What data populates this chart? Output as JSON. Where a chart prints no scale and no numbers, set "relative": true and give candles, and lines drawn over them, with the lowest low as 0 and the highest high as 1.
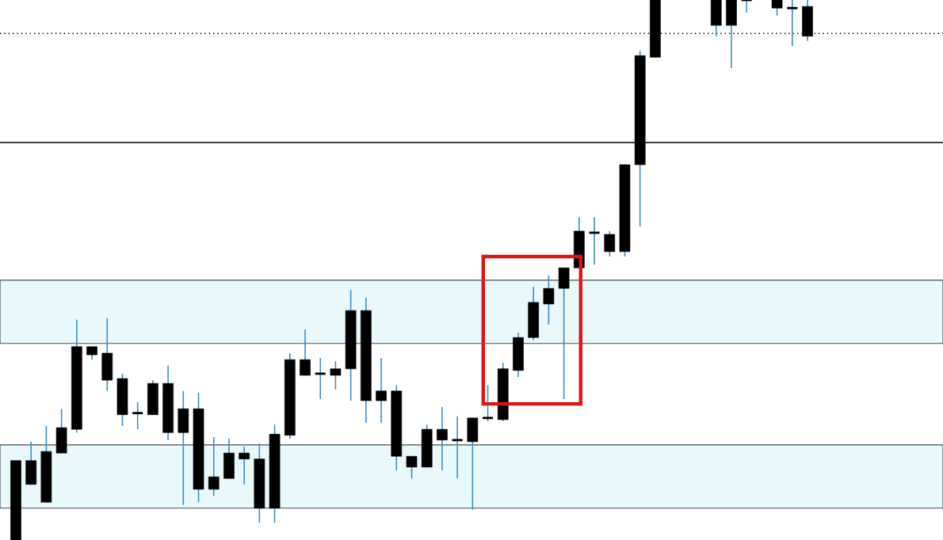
{
  "chart_data": {
    "type": "candlestick",
    "relative": true,
    "categories": [
      null,
      null,
      null,
      null,
      null,
      null,
      null,
      null,
      null,
      null,
      null,
      null,
      null,
      null,
      null,
      null,
      null,
      null,
      null,
      null,
      null,
      null,
      null,
      null,
      null,
      null,
      null,
      null,
      null,
      null,
      null,
      null,
      null,
      null,
      null,
      null,
      null,
      null,
      null,
      null,
      null,
      null,
      null,
      null,
      null,
      null,
      null,
      null,
      null,
      null,
      null,
      null,
      null
    ],
    "ohlc": [
      [
        0,
        0.147,
        0,
        0.147
      ],
      [
        0.103,
        0.182,
        0.103,
        0.147
      ],
      [
        0.07,
        0.211,
        0.07,
        0.164
      ],
      [
        0.161,
        0.243,
        0.161,
        0.208
      ],
      [
        0.205,
        0.408,
        0.199,
        0.358
      ],
      [
        0.343,
        0.358,
        0.334,
        0.358
      ],
      [
        0.296,
        0.411,
        0.276,
        0.346
      ],
      [
        0.232,
        0.308,
        0.211,
        0.299
      ],
      [
        0.235,
        0.255,
        0.205,
        0.235
      ],
      [
        0.232,
        0.296,
        0.232,
        0.29
      ],
      [
        0.199,
        0.323,
        0.185,
        0.29
      ],
      [
        0.199,
        0.276,
        0.065,
        0.243
      ],
      [
        0.094,
        0.273,
        0.07,
        0.243
      ],
      [
        0.094,
        0.191,
        0.082,
        0.117
      ],
      [
        0.114,
        0.188,
        0.114,
        0.161
      ],
      [
        0.15,
        0.173,
        0.103,
        0.161
      ],
      [
        0.059,
        0.179,
        0.032,
        0.15
      ],
      [
        0.059,
        0.214,
        0.032,
        0.196
      ],
      [
        0.194,
        0.346,
        0.188,
        0.334
      ],
      [
        0.305,
        0.39,
        0.305,
        0.334
      ],
      [
        0.308,
        0.337,
        0.261,
        0.308
      ],
      [
        0.305,
        0.331,
        0.279,
        0.317
      ],
      [
        0.317,
        0.463,
        0.258,
        0.425
      ],
      [
        0.258,
        0.449,
        0.217,
        0.425
      ],
      [
        0.258,
        0.337,
        0.217,
        0.276
      ],
      [
        0.155,
        0.287,
        0.129,
        0.276
      ],
      [
        0.135,
        0.155,
        0.114,
        0.155
      ],
      [
        0.135,
        0.214,
        0.135,
        0.205
      ],
      [
        0.185,
        0.246,
        0.129,
        0.205
      ],
      [
        0.185,
        0.229,
        0.114,
        0.185
      ],
      [
        0.182,
        0.226,
        0.056,
        0.226
      ],
      [
        0.226,
        0.287,
        0.22,
        0.226
      ],
      [
        0.223,
        0.328,
        0.22,
        0.317
      ],
      [
        0.314,
        0.384,
        0.302,
        0.375
      ],
      [
        0.375,
        0.469,
        0.37,
        0.44
      ],
      [
        0.437,
        0.49,
        0.399,
        0.466
      ],
      [
        0.466,
        0.504,
        0.261,
        0.504
      ],
      [
        0.504,
        0.598,
        0.504,
        0.572
      ],
      [
        0.569,
        0.598,
        0.51,
        0.569
      ],
      [
        0.534,
        0.572,
        0.525,
        0.566
      ],
      [
        0.534,
        0.695,
        0.525,
        0.695
      ],
      [
        0.695,
        0.906,
        0.581,
        0.897
      ],
      [
        0.894,
        1,
        0.894,
        1
      ],
      null,
      null,
      null,
      [
        0.953,
        1,
        0.933,
        1
      ],
      [
        0.953,
        1,
        0.874,
        1
      ],
      [
        1,
        1,
        0.977,
        1
      ],
      null,
      [
        0.985,
        1,
        0.971,
        1
      ],
      [
        0.985,
        1,
        0.915,
        0.985
      ],
      [
        0.933,
        1,
        0.924,
        0.988
      ]
    ],
    "ref_lines": [
      {
        "axis": "y",
        "value": 0.736,
        "line_style": "solid",
        "color": "#000000"
      },
      {
        "axis": "y",
        "value": 0.938,
        "line_style": "dotted",
        "color": "#000000"
      }
    ],
    "bands": [
      {
        "axis": "y",
        "from": 0.364,
        "to": 0.481,
        "color": "#e8f8fb"
      },
      {
        "axis": "y",
        "from": 0.059,
        "to": 0.176,
        "color": "#e8f8fb"
      }
    ]
  }
}
